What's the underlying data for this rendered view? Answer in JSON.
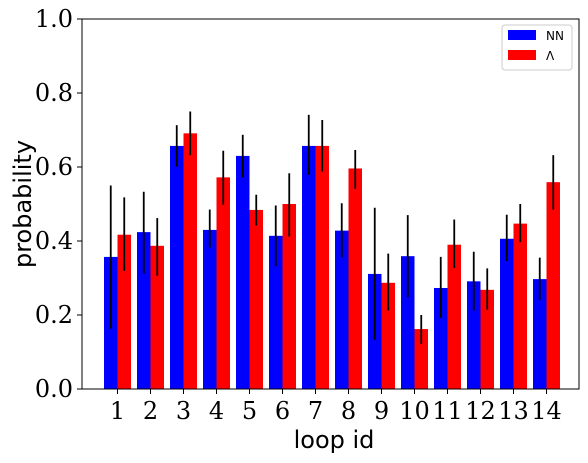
{
  "chart_data": {
    "type": "bar",
    "title": "",
    "xlabel": "loop id",
    "ylabel": "probability",
    "ylim": [
      0,
      1.0
    ],
    "yticks": [
      "0.0",
      "0.2",
      "0.4",
      "0.6",
      "0.8",
      "1.0"
    ],
    "categories": [
      "1",
      "2",
      "3",
      "4",
      "5",
      "6",
      "7",
      "8",
      "9",
      "10",
      "11",
      "12",
      "13",
      "14"
    ],
    "series": [
      {
        "name": "NN",
        "color": "#0000ff",
        "values": [
          0.357,
          0.424,
          0.657,
          0.43,
          0.63,
          0.414,
          0.657,
          0.428,
          0.311,
          0.359,
          0.273,
          0.291,
          0.406,
          0.297
        ],
        "err_low": [
          0.163,
          0.312,
          0.601,
          0.382,
          0.572,
          0.332,
          0.578,
          0.356,
          0.133,
          0.248,
          0.192,
          0.212,
          0.346,
          0.241
        ],
        "err_high": [
          0.55,
          0.533,
          0.713,
          0.485,
          0.687,
          0.496,
          0.741,
          0.502,
          0.49,
          0.47,
          0.357,
          0.371,
          0.471,
          0.355
        ]
      },
      {
        "name": "Λ",
        "color": "#ff0000",
        "values": [
          0.417,
          0.387,
          0.691,
          0.572,
          0.484,
          0.5,
          0.657,
          0.596,
          0.287,
          0.162,
          0.39,
          0.268,
          0.447,
          0.559
        ],
        "err_low": [
          0.319,
          0.306,
          0.632,
          0.498,
          0.442,
          0.412,
          0.588,
          0.541,
          0.212,
          0.122,
          0.327,
          0.214,
          0.397,
          0.485
        ],
        "err_high": [
          0.518,
          0.462,
          0.75,
          0.644,
          0.525,
          0.583,
          0.727,
          0.646,
          0.366,
          0.2,
          0.458,
          0.326,
          0.5,
          0.632
        ]
      }
    ],
    "legend_position": "top-right",
    "grid": false
  }
}
